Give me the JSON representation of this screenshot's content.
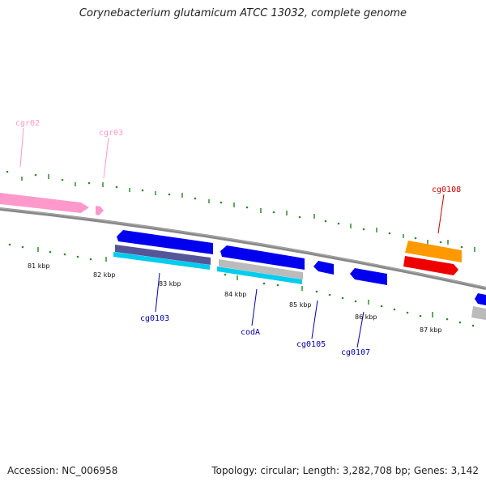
{
  "title": "Corynebacterium glutamicum ATCC 13032, complete genome",
  "footer": {
    "accession": "Accession: NC_006958",
    "genome_info": "Topology: circular; Length: 3,282,708 bp; Genes: 3,142"
  },
  "scale_ticks": [
    "81 kbp",
    "82 kbp",
    "83 kbp",
    "84 kbp",
    "85 kbp",
    "86 kbp",
    "87 kbp"
  ],
  "gene_labels": {
    "cgr02": "cgr02",
    "cgr03": "cgr03",
    "cg0108": "cg0108",
    "cg0103": "cg0103",
    "codA": "codA",
    "cg0105": "cg0105",
    "cg0107": "cg0107"
  },
  "colors": {
    "backbone": "#888888",
    "tick": "#2e8b2e",
    "rna": "#ff99cc",
    "cds": "#0000ee",
    "cds_label": "#0000aa",
    "orange": "#ff9900",
    "red": "#ee0000",
    "red_label": "#cc0000",
    "cyan": "#00ccee",
    "grey": "#bbbbbb",
    "purple": "#555599"
  }
}
